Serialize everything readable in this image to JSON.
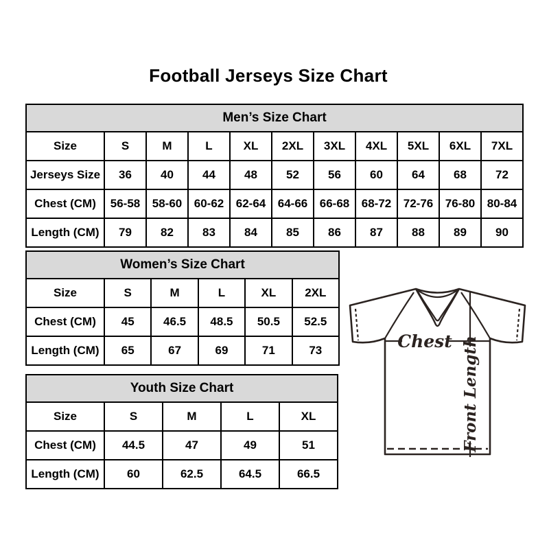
{
  "page": {
    "title": "Football Jerseys Size Chart"
  },
  "tables": [
    {
      "title": "Men’s Size Chart",
      "rows": [
        [
          "Size",
          "S",
          "M",
          "L",
          "XL",
          "2XL",
          "3XL",
          "4XL",
          "5XL",
          "6XL",
          "7XL"
        ],
        [
          "Jerseys Size",
          "36",
          "40",
          "44",
          "48",
          "52",
          "56",
          "60",
          "64",
          "68",
          "72"
        ],
        [
          "Chest (CM)",
          "56-58",
          "58-60",
          "60-62",
          "62-64",
          "64-66",
          "66-68",
          "68-72",
          "72-76",
          "76-80",
          "80-84"
        ],
        [
          "Length (CM)",
          "79",
          "82",
          "83",
          "84",
          "85",
          "86",
          "87",
          "88",
          "89",
          "90"
        ]
      ]
    },
    {
      "title": "Women’s Size Chart",
      "rows": [
        [
          "Size",
          "S",
          "M",
          "L",
          "XL",
          "2XL"
        ],
        [
          "Chest (CM)",
          "45",
          "46.5",
          "48.5",
          "50.5",
          "52.5"
        ],
        [
          "Length (CM)",
          "65",
          "67",
          "69",
          "71",
          "73"
        ]
      ]
    },
    {
      "title": "Youth Size Chart",
      "rows": [
        [
          "Size",
          "S",
          "M",
          "L",
          "XL"
        ],
        [
          "Chest (CM)",
          "44.5",
          "47",
          "49",
          "51"
        ],
        [
          "Length (CM)",
          "60",
          "62.5",
          "64.5",
          "66.5"
        ]
      ]
    }
  ],
  "diagram": {
    "chest_label": "Chest",
    "front_length_label": "Front Length"
  },
  "colors": {
    "header_bg": "#d9d9d9",
    "table_border": "#000000",
    "jersey_line": "#2b2320"
  }
}
